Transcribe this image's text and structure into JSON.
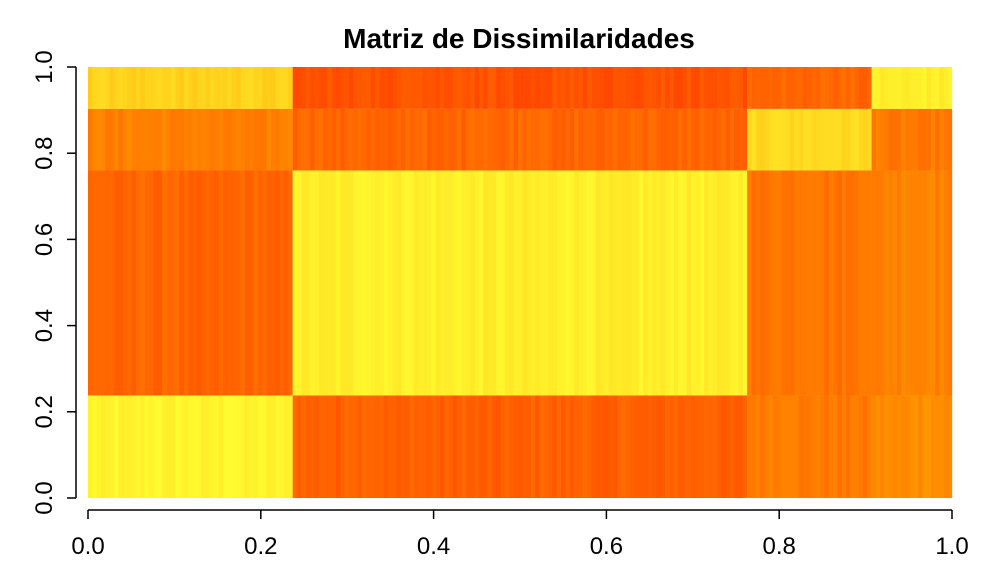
{
  "chart_data": {
    "type": "heatmap",
    "title": "Matriz de Dissimilaridades",
    "xlabel": "",
    "ylabel": "",
    "xlim": [
      0.0,
      1.0
    ],
    "ylim": [
      0.0,
      1.0
    ],
    "x_ticks": [
      "0.0",
      "0.2",
      "0.4",
      "0.6",
      "0.8",
      "1.0"
    ],
    "y_ticks": [
      "0.0",
      "0.2",
      "0.4",
      "0.6",
      "0.8",
      "1.0"
    ],
    "x_breaks": [
      0.0,
      0.237,
      0.763,
      0.907,
      1.0
    ],
    "y_breaks": [
      0.0,
      0.238,
      0.76,
      0.903,
      1.0
    ],
    "colors": {
      "low": "#FFFF33",
      "mid": "#FF9900",
      "high": "#FF1A00"
    },
    "blocks": [
      [
        0.05,
        0.72,
        0.62,
        0.55
      ],
      [
        0.7,
        0.08,
        0.65,
        0.6
      ],
      [
        0.6,
        0.7,
        0.18,
        0.62
      ],
      [
        0.7,
        0.75,
        0.1,
        0.8
      ]
    ],
    "top_strip": {
      "y_range": [
        0.903,
        1.0
      ],
      "values": [
        0.22,
        0.78,
        0.7,
        0.08
      ]
    },
    "grid": false,
    "legend": "none"
  }
}
